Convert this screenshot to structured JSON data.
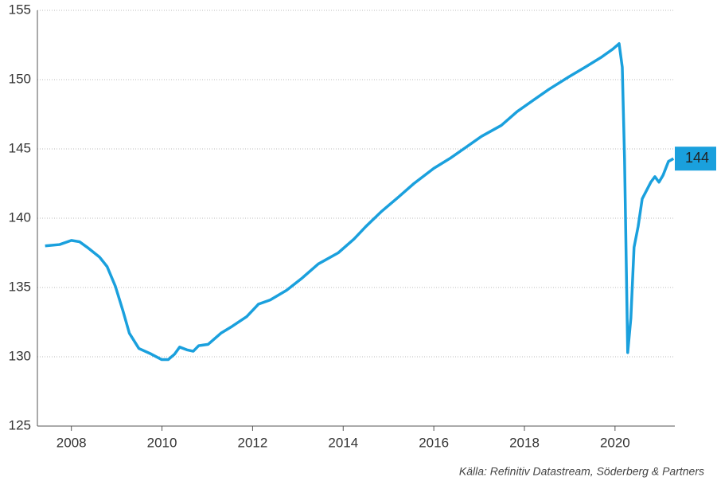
{
  "chart_data": {
    "type": "line",
    "x": [
      2007.42,
      2007.74,
      2008.0,
      2008.18,
      2008.35,
      2008.62,
      2008.79,
      2008.97,
      2009.14,
      2009.28,
      2009.49,
      2009.76,
      2009.99,
      2010.14,
      2010.28,
      2010.39,
      2010.55,
      2010.69,
      2010.81,
      2011.02,
      2011.3,
      2011.55,
      2011.87,
      2012.13,
      2012.39,
      2012.75,
      2013.1,
      2013.45,
      2013.89,
      2014.24,
      2014.5,
      2014.85,
      2015.21,
      2015.56,
      2016.0,
      2016.35,
      2016.7,
      2017.05,
      2017.49,
      2017.84,
      2018.19,
      2018.54,
      2018.98,
      2019.34,
      2019.69,
      2019.95,
      2020.09,
      2020.16,
      2020.21,
      2020.28,
      2020.35,
      2020.42,
      2020.51,
      2020.6,
      2020.79,
      2020.88,
      2020.97,
      2021.06,
      2021.18,
      2021.29
    ],
    "series": [
      {
        "color": "#1aa0dd",
        "values": [
          138.0,
          138.1,
          138.4,
          138.3,
          137.9,
          137.2,
          136.5,
          135.1,
          133.3,
          131.7,
          130.6,
          130.2,
          129.8,
          129.8,
          130.2,
          130.7,
          130.5,
          130.4,
          130.8,
          130.9,
          131.7,
          132.2,
          132.9,
          133.8,
          134.1,
          134.8,
          135.7,
          136.7,
          137.5,
          138.5,
          139.4,
          140.5,
          141.5,
          142.5,
          143.6,
          144.3,
          145.1,
          145.9,
          146.7,
          147.7,
          148.5,
          149.3,
          150.2,
          150.9,
          151.6,
          152.2,
          152.6,
          150.9,
          144.3,
          130.3,
          132.8,
          137.9,
          139.4,
          141.4,
          142.6,
          143.0,
          142.6,
          143.1,
          144.1,
          144.3
        ],
        "end_label": "144"
      }
    ],
    "xlim": [
      2007.25,
      2021.32
    ],
    "xticks": [
      2008,
      2010,
      2012,
      2014,
      2016,
      2018,
      2020
    ],
    "ylim": [
      125,
      155
    ],
    "yticks": [
      125,
      130,
      135,
      140,
      145,
      150,
      155
    ],
    "grid": true,
    "source": "Källa: Refinitiv Datastream, Söderberg & Partners"
  }
}
